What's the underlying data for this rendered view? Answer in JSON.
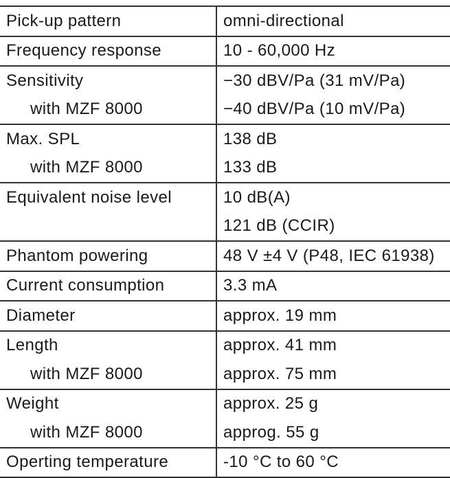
{
  "specs": [
    {
      "label": "Pick-up pattern",
      "value": "omni-directional",
      "sub": []
    },
    {
      "label": "Frequency response",
      "value": "10 - 60,000 Hz",
      "sub": []
    },
    {
      "label": "Sensitivity",
      "value": "−30 dBV/Pa (31 mV/Pa)",
      "sub": [
        {
          "label": "with MZF 8000",
          "value": "−40 dBV/Pa (10 mV/Pa)"
        }
      ]
    },
    {
      "label": "Max. SPL",
      "value": "138 dB",
      "sub": [
        {
          "label": "with MZF 8000",
          "value": "133 dB"
        }
      ]
    },
    {
      "label": "Equivalent noise level",
      "value": "10 dB(A)",
      "sub": [
        {
          "label": "",
          "value": "121 dB (CCIR)"
        }
      ]
    },
    {
      "label": "Phantom powering",
      "value": "48 V ±4 V (P48, IEC 61938)",
      "sub": []
    },
    {
      "label": "Current consumption",
      "value": "3.3 mA",
      "sub": []
    },
    {
      "label": "Diameter",
      "value": "approx. 19 mm",
      "sub": []
    },
    {
      "label": "Length",
      "value": "approx. 41 mm",
      "sub": [
        {
          "label": "with MZF 8000",
          "value": "approx. 75 mm"
        }
      ]
    },
    {
      "label": "Weight",
      "value": "approx. 25 g",
      "sub": [
        {
          "label": "with MZF 8000",
          "value": "approg. 55 g"
        }
      ]
    },
    {
      "label": "Operting temperature",
      "value": "-10 °C to 60 °C",
      "sub": []
    }
  ]
}
